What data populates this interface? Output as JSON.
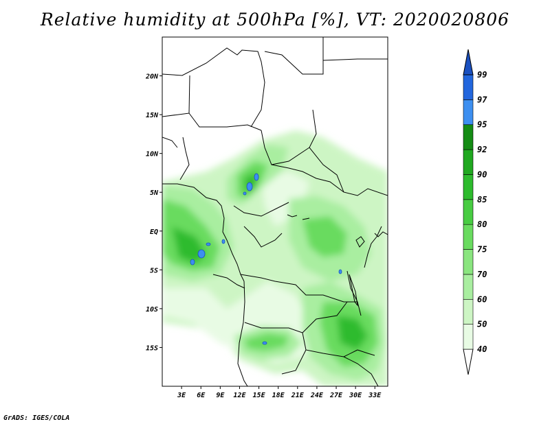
{
  "title": "Relative humidity at 500hPa [%], VT: 2020020806",
  "credit": "GrADS: IGES/COLA",
  "map": {
    "lon_range": [
      0,
      35
    ],
    "lat_range": [
      -20,
      25
    ],
    "lat_ticks": [
      {
        "value": 20,
        "label": "20N"
      },
      {
        "value": 15,
        "label": "15N"
      },
      {
        "value": 10,
        "label": "10N"
      },
      {
        "value": 5,
        "label": "5N"
      },
      {
        "value": 0,
        "label": "EQ"
      },
      {
        "value": -5,
        "label": "5S"
      },
      {
        "value": -10,
        "label": "10S"
      },
      {
        "value": -15,
        "label": "15S"
      }
    ],
    "lon_ticks": [
      {
        "value": 3,
        "label": "3E"
      },
      {
        "value": 6,
        "label": "6E"
      },
      {
        "value": 9,
        "label": "9E"
      },
      {
        "value": 12,
        "label": "12E"
      },
      {
        "value": 15,
        "label": "15E"
      },
      {
        "value": 18,
        "label": "18E"
      },
      {
        "value": 21,
        "label": "21E"
      },
      {
        "value": 24,
        "label": "24E"
      },
      {
        "value": 27,
        "label": "27E"
      },
      {
        "value": 30,
        "label": "30E"
      },
      {
        "value": 33,
        "label": "33E"
      }
    ]
  },
  "colorbar": {
    "levels": [
      "40",
      "50",
      "60",
      "70",
      "75",
      "80",
      "85",
      "90",
      "92",
      "95",
      "97",
      "99"
    ],
    "colors": [
      "#ffffff",
      "#e8fbe4",
      "#cdf5c4",
      "#a9eea0",
      "#8ae57f",
      "#69db5f",
      "#48cc42",
      "#2dbb2d",
      "#20a820",
      "#148c14",
      "#3d8ff0",
      "#2266dd",
      "#1a50c0"
    ]
  }
}
